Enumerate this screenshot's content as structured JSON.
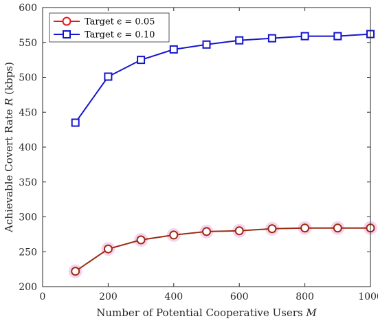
{
  "chart_data": {
    "type": "line",
    "xlabel": "Number of Potential Cooperative Users M",
    "ylabel": "Achievable Covert Rate R (kbps)",
    "xlim": [
      0,
      1000
    ],
    "ylim": [
      200,
      600
    ],
    "xticks": [
      0,
      200,
      400,
      600,
      800,
      1000
    ],
    "yticks": [
      200,
      250,
      300,
      350,
      400,
      450,
      500,
      550,
      600
    ],
    "grid": false,
    "legend_position": "top-left",
    "x": [
      100,
      200,
      300,
      400,
      500,
      600,
      700,
      800,
      900,
      1000
    ],
    "series": [
      {
        "name": "Target ϵ = 0.05",
        "color": "#e8161c",
        "line_color": "#9c2a10",
        "marker": "circle",
        "values": [
          222,
          254,
          267,
          274,
          279,
          280,
          283,
          284,
          284,
          284
        ]
      },
      {
        "name": "Target ϵ = 0.10",
        "color": "#1515cc",
        "line_color": "#1515cc",
        "marker": "square",
        "values": [
          435,
          501,
          525,
          540,
          547,
          553,
          556,
          559,
          559,
          562
        ]
      }
    ]
  }
}
